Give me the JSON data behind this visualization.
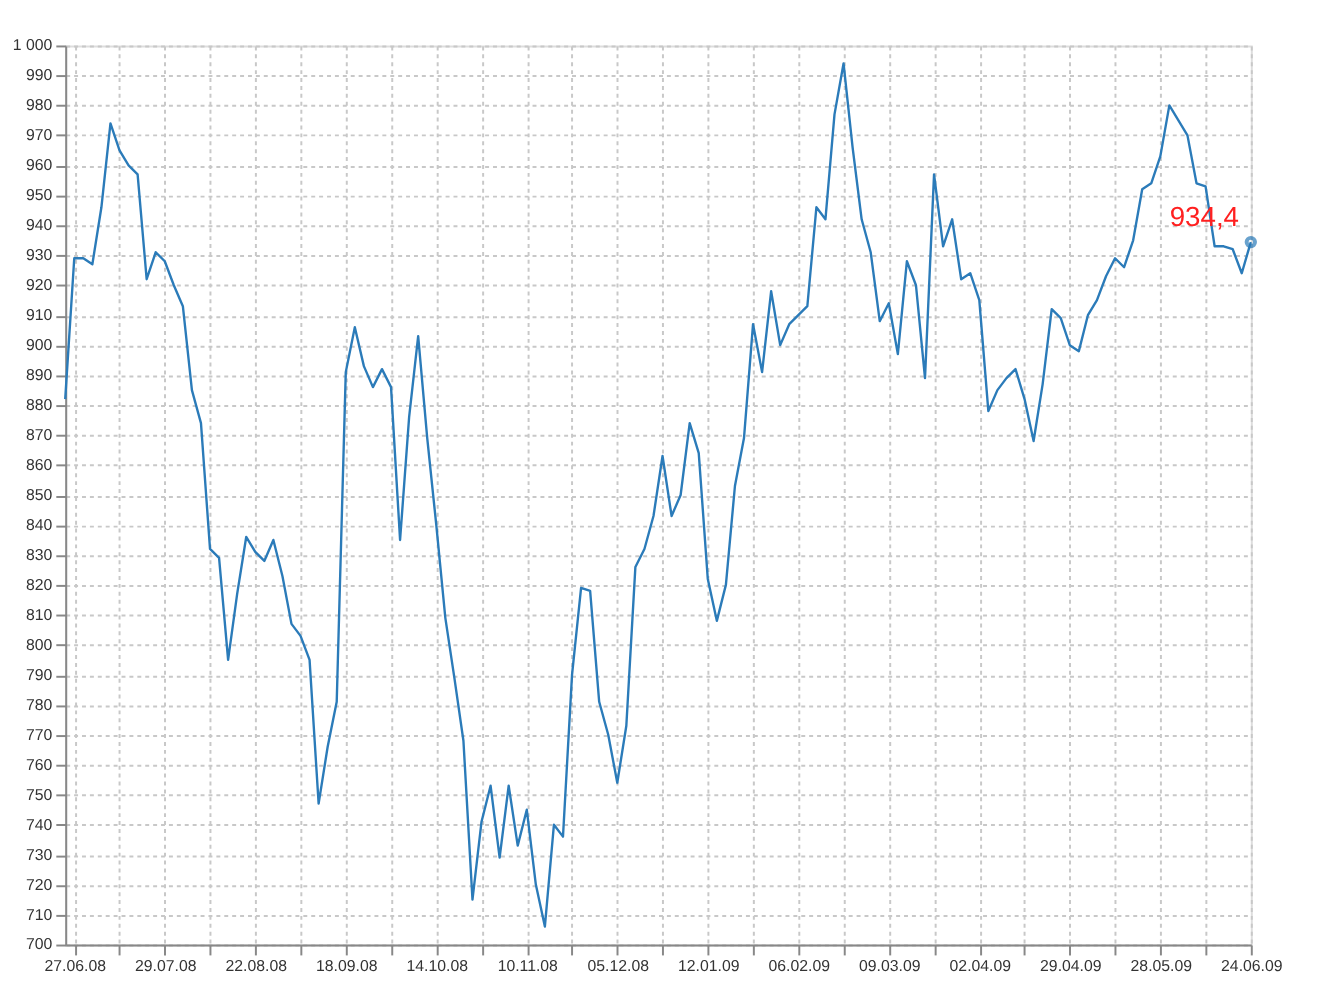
{
  "chart_data": {
    "type": "line",
    "categories": [
      null,
      "27.06.08",
      null,
      null,
      null,
      null,
      null,
      null,
      null,
      null,
      null,
      "29.07.08",
      null,
      null,
      null,
      null,
      null,
      null,
      null,
      null,
      null,
      "22.08.08",
      null,
      null,
      null,
      null,
      null,
      null,
      null,
      null,
      null,
      "18.09.08",
      null,
      null,
      null,
      null,
      null,
      null,
      null,
      null,
      null,
      "14.10.08",
      null,
      null,
      null,
      null,
      null,
      null,
      null,
      null,
      null,
      "10.11.08",
      null,
      null,
      null,
      null,
      null,
      null,
      null,
      null,
      null,
      "05.12.08",
      null,
      null,
      null,
      null,
      null,
      null,
      null,
      null,
      null,
      "12.01.09",
      null,
      null,
      null,
      null,
      null,
      null,
      null,
      null,
      null,
      "06.02.09",
      null,
      null,
      null,
      null,
      null,
      null,
      null,
      null,
      null,
      "09.03.09",
      null,
      null,
      null,
      null,
      null,
      null,
      null,
      null,
      null,
      "02.04.09",
      null,
      null,
      null,
      null,
      null,
      null,
      null,
      null,
      null,
      "29.04.09",
      null,
      null,
      null,
      null,
      null,
      null,
      null,
      null,
      null,
      "28.05.09",
      null,
      null,
      null,
      null,
      null,
      null,
      null,
      null,
      null,
      "24.06.09"
    ],
    "series": [
      {
        "color": "#2b7bb9",
        "values": [
          882,
          929,
          929,
          927,
          946,
          974,
          965,
          960,
          957,
          922,
          931,
          928,
          920,
          913,
          885,
          874,
          832,
          829,
          795,
          817,
          836,
          831,
          828,
          835,
          823,
          807,
          803,
          795,
          747,
          766,
          781,
          891,
          906,
          893,
          886,
          892,
          886,
          835,
          876,
          903,
          869,
          840,
          809,
          789,
          768,
          715,
          741,
          753,
          729,
          753,
          733,
          745,
          720,
          706,
          740,
          736,
          790,
          819,
          818,
          781,
          770,
          754,
          773,
          826,
          832,
          843,
          863,
          843,
          850,
          874,
          864,
          822,
          808,
          820,
          853,
          869,
          907,
          891,
          918,
          900,
          907,
          910,
          913,
          946,
          942,
          977,
          994,
          966,
          942,
          931,
          908,
          914,
          897,
          928,
          920,
          889,
          957,
          933,
          942,
          922,
          924,
          915,
          878,
          885,
          889,
          892,
          882,
          868,
          887,
          912,
          909,
          900,
          898,
          910,
          915,
          923,
          929,
          926,
          935,
          952,
          954,
          963,
          980,
          975,
          970,
          954,
          953,
          933,
          933,
          932,
          924,
          934.4
        ]
      }
    ],
    "ylim": [
      700,
      1000
    ],
    "yticks": [
      700,
      710,
      720,
      730,
      740,
      750,
      760,
      770,
      780,
      790,
      800,
      810,
      820,
      830,
      840,
      850,
      860,
      870,
      880,
      890,
      900,
      910,
      920,
      930,
      940,
      950,
      960,
      970,
      980,
      990,
      {
        "value": 1000,
        "label": "1 000"
      }
    ],
    "grid": true,
    "marker": "none",
    "line_style": "solid",
    "annotations": [
      {
        "text": "934,4",
        "x": "24.06.09",
        "y": 934.4
      }
    ]
  }
}
